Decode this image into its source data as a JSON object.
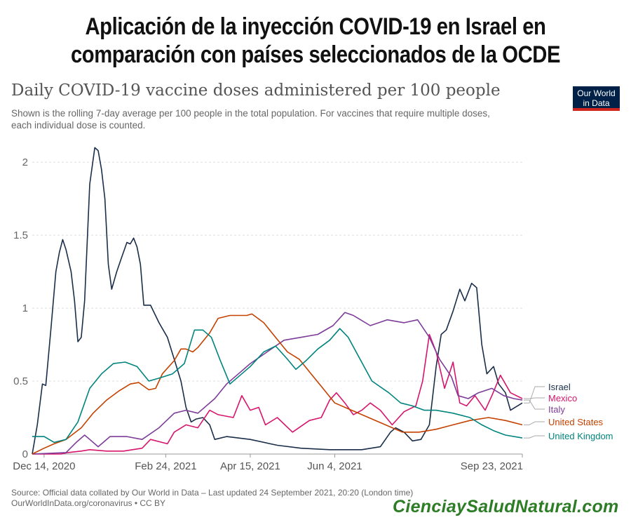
{
  "banner": {
    "line1": "Aplicación de la inyección COVID-19 en Israel en",
    "line2": "comparación con países seleccionados de la OCDE"
  },
  "logo": {
    "line1": "Our World",
    "line2": "in Data",
    "bg": "#002147",
    "stripe": "#ce261e"
  },
  "source": {
    "line1": "Source: Official data collated by Our World in Data – Last updated 24 September 2021, 20:20 (London time)",
    "line2": "OurWorldInData.org/coronavirus • CC BY"
  },
  "watermark": "CienciaySaludNatural.com",
  "chart_data": {
    "type": "line",
    "title": "Daily COVID-19 vaccine doses administered per 100 people",
    "subtitle_line1": "Shown is the rolling 7-day average per 100 people in the total population. For vaccines that require multiple doses,",
    "subtitle_line2": "each individual dose is counted.",
    "xlabel": "",
    "ylabel": "",
    "x_range": [
      "2020-12-07",
      "2021-09-23"
    ],
    "ylim": [
      0,
      2.15
    ],
    "y_ticks": [
      0,
      0.5,
      1,
      1.5,
      2
    ],
    "y_tick_labels": [
      "0",
      "0.5",
      "1",
      "1.5",
      "2"
    ],
    "x_ticks": [
      "2020-12-14",
      "2021-02-24",
      "2021-04-15",
      "2021-06-04",
      "2021-09-23"
    ],
    "x_tick_labels": [
      "Dec 14, 2020",
      "Feb 24, 2021",
      "Apr 15, 2021",
      "Jun 4, 2021",
      "Sep 23, 2021"
    ],
    "grid": "horizontal dashed",
    "legend": "right end labels",
    "series": [
      {
        "name": "Israel",
        "color": "#1a2e4a",
        "points": [
          [
            "2020-12-07",
            0
          ],
          [
            "2020-12-10",
            0.2
          ],
          [
            "2020-12-13",
            0.48
          ],
          [
            "2020-12-15",
            0.47
          ],
          [
            "2020-12-18",
            0.85
          ],
          [
            "2020-12-21",
            1.25
          ],
          [
            "2020-12-23",
            1.38
          ],
          [
            "2020-12-25",
            1.47
          ],
          [
            "2020-12-27",
            1.4
          ],
          [
            "2020-12-30",
            1.25
          ],
          [
            "2021-01-01",
            1.05
          ],
          [
            "2021-01-03",
            0.77
          ],
          [
            "2021-01-05",
            0.8
          ],
          [
            "2021-01-07",
            1.05
          ],
          [
            "2021-01-10",
            1.85
          ],
          [
            "2021-01-13",
            2.1
          ],
          [
            "2021-01-15",
            2.08
          ],
          [
            "2021-01-17",
            1.95
          ],
          [
            "2021-01-19",
            1.75
          ],
          [
            "2021-01-21",
            1.3
          ],
          [
            "2021-01-23",
            1.13
          ],
          [
            "2021-01-26",
            1.25
          ],
          [
            "2021-01-29",
            1.35
          ],
          [
            "2021-02-01",
            1.45
          ],
          [
            "2021-02-03",
            1.44
          ],
          [
            "2021-02-05",
            1.48
          ],
          [
            "2021-02-07",
            1.42
          ],
          [
            "2021-02-09",
            1.3
          ],
          [
            "2021-02-11",
            1.02
          ],
          [
            "2021-02-15",
            1.02
          ],
          [
            "2021-02-20",
            0.9
          ],
          [
            "2021-02-25",
            0.8
          ],
          [
            "2021-03-01",
            0.65
          ],
          [
            "2021-03-05",
            0.5
          ],
          [
            "2021-03-08",
            0.32
          ],
          [
            "2021-03-11",
            0.22
          ],
          [
            "2021-03-14",
            0.24
          ],
          [
            "2021-03-18",
            0.25
          ],
          [
            "2021-03-22",
            0.2
          ],
          [
            "2021-03-25",
            0.1
          ],
          [
            "2021-04-01",
            0.12
          ],
          [
            "2021-04-15",
            0.1
          ],
          [
            "2021-05-01",
            0.06
          ],
          [
            "2021-05-15",
            0.04
          ],
          [
            "2021-06-01",
            0.03
          ],
          [
            "2021-06-20",
            0.03
          ],
          [
            "2021-07-01",
            0.05
          ],
          [
            "2021-07-07",
            0.15
          ],
          [
            "2021-07-10",
            0.18
          ],
          [
            "2021-07-15",
            0.15
          ],
          [
            "2021-07-20",
            0.09
          ],
          [
            "2021-07-25",
            0.1
          ],
          [
            "2021-07-30",
            0.2
          ],
          [
            "2021-08-03",
            0.6
          ],
          [
            "2021-08-06",
            0.82
          ],
          [
            "2021-08-09",
            0.85
          ],
          [
            "2021-08-13",
            0.98
          ],
          [
            "2021-08-17",
            1.13
          ],
          [
            "2021-08-20",
            1.05
          ],
          [
            "2021-08-24",
            1.17
          ],
          [
            "2021-08-27",
            1.14
          ],
          [
            "2021-08-30",
            0.75
          ],
          [
            "2021-09-02",
            0.55
          ],
          [
            "2021-09-06",
            0.6
          ],
          [
            "2021-09-09",
            0.48
          ],
          [
            "2021-09-13",
            0.42
          ],
          [
            "2021-09-16",
            0.3
          ],
          [
            "2021-09-23",
            0.35
          ]
        ]
      },
      {
        "name": "Mexico",
        "color": "#d6156c",
        "points": [
          [
            "2020-12-07",
            0
          ],
          [
            "2020-12-24",
            0
          ],
          [
            "2020-12-28",
            0.01
          ],
          [
            "2021-01-05",
            0.02
          ],
          [
            "2021-01-10",
            0.03
          ],
          [
            "2021-01-20",
            0.02
          ],
          [
            "2021-01-30",
            0.02
          ],
          [
            "2021-02-10",
            0.04
          ],
          [
            "2021-02-15",
            0.1
          ],
          [
            "2021-02-25",
            0.07
          ],
          [
            "2021-03-01",
            0.15
          ],
          [
            "2021-03-08",
            0.2
          ],
          [
            "2021-03-15",
            0.18
          ],
          [
            "2021-03-22",
            0.3
          ],
          [
            "2021-03-27",
            0.27
          ],
          [
            "2021-04-05",
            0.25
          ],
          [
            "2021-04-10",
            0.4
          ],
          [
            "2021-04-15",
            0.3
          ],
          [
            "2021-04-20",
            0.32
          ],
          [
            "2021-04-24",
            0.2
          ],
          [
            "2021-05-01",
            0.25
          ],
          [
            "2021-05-10",
            0.15
          ],
          [
            "2021-05-20",
            0.23
          ],
          [
            "2021-05-27",
            0.25
          ],
          [
            "2021-06-01",
            0.37
          ],
          [
            "2021-06-05",
            0.42
          ],
          [
            "2021-06-10",
            0.35
          ],
          [
            "2021-06-15",
            0.27
          ],
          [
            "2021-06-20",
            0.3
          ],
          [
            "2021-06-25",
            0.35
          ],
          [
            "2021-07-01",
            0.3
          ],
          [
            "2021-07-08",
            0.2
          ],
          [
            "2021-07-15",
            0.29
          ],
          [
            "2021-07-22",
            0.33
          ],
          [
            "2021-07-26",
            0.5
          ],
          [
            "2021-07-30",
            0.82
          ],
          [
            "2021-08-03",
            0.7
          ],
          [
            "2021-08-08",
            0.45
          ],
          [
            "2021-08-13",
            0.63
          ],
          [
            "2021-08-17",
            0.35
          ],
          [
            "2021-08-21",
            0.33
          ],
          [
            "2021-08-26",
            0.4
          ],
          [
            "2021-09-01",
            0.3
          ],
          [
            "2021-09-05",
            0.4
          ],
          [
            "2021-09-10",
            0.54
          ],
          [
            "2021-09-16",
            0.42
          ],
          [
            "2021-09-23",
            0.38
          ]
        ]
      },
      {
        "name": "Italy",
        "color": "#7d3c98",
        "points": [
          [
            "2020-12-07",
            0
          ],
          [
            "2020-12-27",
            0.01
          ],
          [
            "2021-01-02",
            0.08
          ],
          [
            "2021-01-07",
            0.13
          ],
          [
            "2021-01-10",
            0.1
          ],
          [
            "2021-01-15",
            0.05
          ],
          [
            "2021-01-22",
            0.12
          ],
          [
            "2021-02-01",
            0.12
          ],
          [
            "2021-02-10",
            0.1
          ],
          [
            "2021-02-20",
            0.18
          ],
          [
            "2021-03-01",
            0.28
          ],
          [
            "2021-03-08",
            0.3
          ],
          [
            "2021-03-15",
            0.28
          ],
          [
            "2021-03-25",
            0.38
          ],
          [
            "2021-04-01",
            0.48
          ],
          [
            "2021-04-08",
            0.55
          ],
          [
            "2021-04-15",
            0.62
          ],
          [
            "2021-04-25",
            0.7
          ],
          [
            "2021-05-05",
            0.78
          ],
          [
            "2021-05-15",
            0.8
          ],
          [
            "2021-05-25",
            0.82
          ],
          [
            "2021-06-03",
            0.88
          ],
          [
            "2021-06-10",
            0.97
          ],
          [
            "2021-06-15",
            0.95
          ],
          [
            "2021-06-25",
            0.88
          ],
          [
            "2021-07-05",
            0.92
          ],
          [
            "2021-07-15",
            0.9
          ],
          [
            "2021-07-23",
            0.92
          ],
          [
            "2021-07-30",
            0.8
          ],
          [
            "2021-08-05",
            0.65
          ],
          [
            "2021-08-12",
            0.53
          ],
          [
            "2021-08-16",
            0.4
          ],
          [
            "2021-08-22",
            0.38
          ],
          [
            "2021-08-28",
            0.42
          ],
          [
            "2021-09-05",
            0.45
          ],
          [
            "2021-09-12",
            0.4
          ],
          [
            "2021-09-18",
            0.38
          ],
          [
            "2021-09-23",
            0.37
          ]
        ]
      },
      {
        "name": "United States",
        "color": "#c44100",
        "points": [
          [
            "2020-12-07",
            0
          ],
          [
            "2020-12-14",
            0.04
          ],
          [
            "2020-12-20",
            0.07
          ],
          [
            "2020-12-27",
            0.1
          ],
          [
            "2021-01-05",
            0.18
          ],
          [
            "2021-01-12",
            0.28
          ],
          [
            "2021-01-20",
            0.37
          ],
          [
            "2021-01-27",
            0.43
          ],
          [
            "2021-02-03",
            0.48
          ],
          [
            "2021-02-08",
            0.49
          ],
          [
            "2021-02-14",
            0.44
          ],
          [
            "2021-02-18",
            0.45
          ],
          [
            "2021-02-22",
            0.55
          ],
          [
            "2021-03-01",
            0.64
          ],
          [
            "2021-03-05",
            0.72
          ],
          [
            "2021-03-08",
            0.72
          ],
          [
            "2021-03-12",
            0.7
          ],
          [
            "2021-03-15",
            0.73
          ],
          [
            "2021-03-22",
            0.83
          ],
          [
            "2021-03-27",
            0.93
          ],
          [
            "2021-04-03",
            0.95
          ],
          [
            "2021-04-08",
            0.95
          ],
          [
            "2021-04-13",
            0.95
          ],
          [
            "2021-04-16",
            0.96
          ],
          [
            "2021-04-23",
            0.9
          ],
          [
            "2021-04-30",
            0.8
          ],
          [
            "2021-05-07",
            0.7
          ],
          [
            "2021-05-14",
            0.65
          ],
          [
            "2021-05-21",
            0.55
          ],
          [
            "2021-05-28",
            0.45
          ],
          [
            "2021-06-04",
            0.35
          ],
          [
            "2021-06-14",
            0.3
          ],
          [
            "2021-06-24",
            0.25
          ],
          [
            "2021-07-04",
            0.2
          ],
          [
            "2021-07-14",
            0.15
          ],
          [
            "2021-07-24",
            0.15
          ],
          [
            "2021-08-03",
            0.17
          ],
          [
            "2021-08-13",
            0.2
          ],
          [
            "2021-08-23",
            0.23
          ],
          [
            "2021-09-03",
            0.25
          ],
          [
            "2021-09-13",
            0.23
          ],
          [
            "2021-09-23",
            0.2
          ]
        ]
      },
      {
        "name": "United Kingdom",
        "color": "#00847e",
        "points": [
          [
            "2020-12-07",
            0.12
          ],
          [
            "2020-12-14",
            0.12
          ],
          [
            "2020-12-20",
            0.08
          ],
          [
            "2020-12-27",
            0.1
          ],
          [
            "2021-01-03",
            0.22
          ],
          [
            "2021-01-10",
            0.45
          ],
          [
            "2021-01-17",
            0.55
          ],
          [
            "2021-01-24",
            0.62
          ],
          [
            "2021-01-31",
            0.63
          ],
          [
            "2021-02-07",
            0.6
          ],
          [
            "2021-02-14",
            0.5
          ],
          [
            "2021-02-20",
            0.52
          ],
          [
            "2021-02-28",
            0.55
          ],
          [
            "2021-03-07",
            0.62
          ],
          [
            "2021-03-13",
            0.85
          ],
          [
            "2021-03-18",
            0.85
          ],
          [
            "2021-03-23",
            0.8
          ],
          [
            "2021-03-28",
            0.65
          ],
          [
            "2021-04-03",
            0.48
          ],
          [
            "2021-04-08",
            0.53
          ],
          [
            "2021-04-15",
            0.6
          ],
          [
            "2021-04-23",
            0.7
          ],
          [
            "2021-04-30",
            0.74
          ],
          [
            "2021-05-07",
            0.65
          ],
          [
            "2021-05-12",
            0.58
          ],
          [
            "2021-05-18",
            0.64
          ],
          [
            "2021-05-25",
            0.72
          ],
          [
            "2021-06-01",
            0.78
          ],
          [
            "2021-06-07",
            0.86
          ],
          [
            "2021-06-12",
            0.8
          ],
          [
            "2021-06-19",
            0.65
          ],
          [
            "2021-06-26",
            0.5
          ],
          [
            "2021-07-06",
            0.42
          ],
          [
            "2021-07-13",
            0.35
          ],
          [
            "2021-07-20",
            0.33
          ],
          [
            "2021-07-27",
            0.3
          ],
          [
            "2021-08-03",
            0.3
          ],
          [
            "2021-08-13",
            0.28
          ],
          [
            "2021-08-23",
            0.25
          ],
          [
            "2021-08-30",
            0.2
          ],
          [
            "2021-09-06",
            0.16
          ],
          [
            "2021-09-13",
            0.13
          ],
          [
            "2021-09-23",
            0.11
          ]
        ]
      }
    ]
  }
}
